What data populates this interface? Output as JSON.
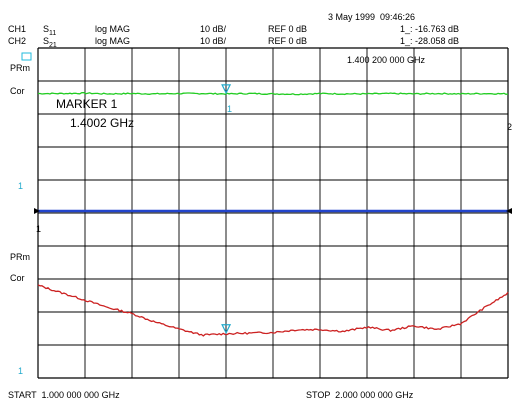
{
  "header": {
    "datetime": "3 May 1999  09:46:26",
    "ch1": {
      "label": "CH1",
      "param_main": "S",
      "param_sub": "11",
      "format": "log MAG",
      "scale": "10 dB/",
      "ref": "REF 0 dB",
      "marker_readout": "1_: -16.763 dB"
    },
    "ch2": {
      "label": "CH2",
      "param_main": "S",
      "param_sub": "21",
      "format": "log MAG",
      "scale": "10 dB/",
      "ref": "REF 0 dB",
      "marker_readout": "1_: -28.058 dB"
    }
  },
  "annotations": {
    "marker_freq": "1.400 200 000 GHz",
    "status_upper_1": "PRm",
    "status_upper_2": "Cor",
    "status_lower_1": "PRm",
    "status_lower_2": "Cor",
    "marker_title": "MARKER 1",
    "marker_value": "1.4002 GHz",
    "ref_mark_upper": "1",
    "ref_mark_lower": "1",
    "ref_mark_bottom": "1",
    "trace_end_mark": "2",
    "marker_symbol": "1"
  },
  "footer": {
    "start": "START  1.000 000 000 GHz",
    "stop": "STOP  2.000 000 000 GHz"
  },
  "colors": {
    "grid": "#000000",
    "s21_trace": "#22cc22",
    "s11_trace": "#cc2222",
    "reference_line": "#2244cc",
    "marker": "#22aacc",
    "cyan_icon": "#22bbdd"
  },
  "chart_data": {
    "type": "line",
    "x_start_ghz": 1.0,
    "x_stop_ghz": 2.0,
    "y_scale_db_per_div": 10,
    "ref_db": 0,
    "marker_x_ghz": 1.4002,
    "series": [
      {
        "x": [
          1.0,
          1.05,
          1.1,
          1.15,
          1.2,
          1.25,
          1.3,
          1.35,
          1.4,
          1.45,
          1.5,
          1.55,
          1.6,
          1.65,
          1.7,
          1.75,
          1.8,
          1.85,
          1.9,
          1.95,
          2.0
        ],
        "values": [
          -4.1,
          -4.1,
          -4.0,
          -4.2,
          -4.1,
          -4.2,
          -4.1,
          -4.1,
          -4.2,
          -4.1,
          -4.2,
          -4.3,
          -4.1,
          -4.2,
          -4.2,
          -4.1,
          -4.2,
          -4.1,
          -4.2,
          -4.1,
          -4.2
        ]
      },
      {
        "x": [
          1.0,
          1.05,
          1.1,
          1.15,
          1.2,
          1.25,
          1.3,
          1.35,
          1.4,
          1.45,
          1.5,
          1.55,
          1.6,
          1.65,
          1.7,
          1.75,
          1.8,
          1.85,
          1.9,
          1.95,
          2.0
        ],
        "values": [
          -22.5,
          -24.8,
          -27.0,
          -29.3,
          -31.1,
          -33.7,
          -35.8,
          -37.6,
          -37.2,
          -37.0,
          -36.8,
          -36.0,
          -35.9,
          -36.5,
          -35.2,
          -36.2,
          -34.8,
          -35.9,
          -34.1,
          -29.3,
          -24.9
        ]
      }
    ]
  }
}
